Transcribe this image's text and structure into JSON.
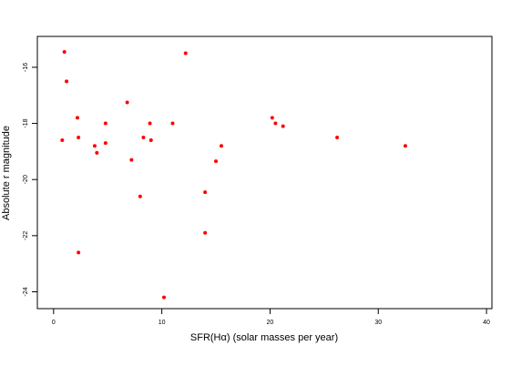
{
  "chart_data": {
    "type": "scatter",
    "title": "",
    "xlabel": "SFR(Hα) (solar masses per year)",
    "ylabel": "Absolute r magnitude",
    "xlim": [
      -1.5,
      40.5
    ],
    "ylim": [
      -14.9,
      -24.6
    ],
    "y_inverted": true,
    "x_ticks": [
      0,
      10,
      20,
      30,
      40
    ],
    "x_tick_labels": [
      "0",
      "10",
      "20",
      "30",
      "40"
    ],
    "y_ticks": [
      -16,
      -18,
      -20,
      -22,
      -24
    ],
    "y_tick_labels": [
      "-16",
      "-18",
      "-20",
      "-22",
      "-24"
    ],
    "grid": false,
    "marker_color": "#ff0000",
    "series": [
      {
        "x": [
          1.0,
          1.2,
          2.2,
          2.3,
          0.8,
          2.3,
          3.8,
          4.0,
          4.8,
          4.8,
          6.8,
          7.2,
          8.0,
          8.3,
          8.9,
          9.0,
          10.2,
          11.0,
          12.2,
          14.0,
          14.0,
          15.0,
          15.5,
          20.2,
          20.5,
          21.2,
          26.2,
          32.5
        ],
        "y": [
          -15.45,
          -16.5,
          -17.8,
          -18.5,
          -18.6,
          -22.6,
          -18.8,
          -19.05,
          -18.0,
          -18.7,
          -17.25,
          -19.3,
          -20.6,
          -18.5,
          -18.0,
          -18.6,
          -24.2,
          -18.0,
          -15.5,
          -20.45,
          -21.9,
          -19.35,
          -18.8,
          -17.8,
          -18.0,
          -18.1,
          -18.5,
          -18.8
        ]
      }
    ]
  }
}
